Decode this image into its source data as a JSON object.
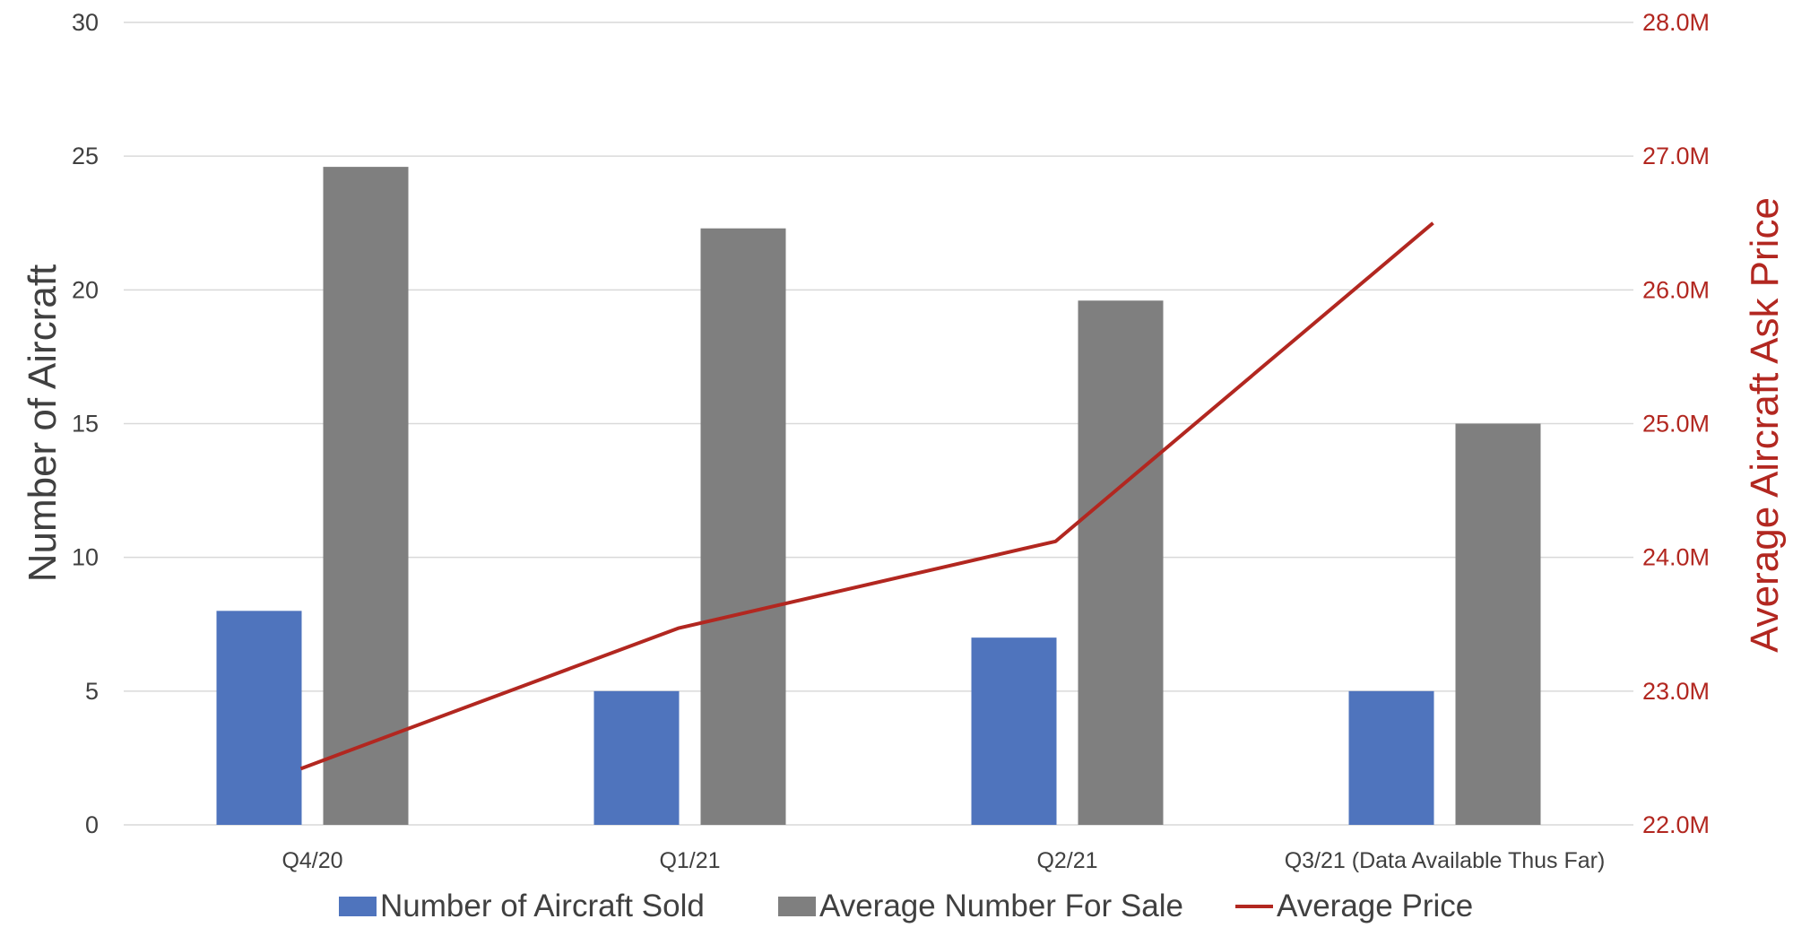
{
  "chart_data": {
    "type": "bar",
    "categories": [
      "Q4/20",
      "Q1/21",
      "Q2/21",
      "Q3/21 (Data Available Thus Far)"
    ],
    "series": [
      {
        "name": "Number of Aircraft Sold",
        "kind": "bar",
        "axis": "left",
        "color": "#4f74bd",
        "values": [
          8,
          5,
          7,
          5
        ]
      },
      {
        "name": "Average Number For Sale",
        "kind": "bar",
        "axis": "left",
        "color": "#7f7f7f",
        "values": [
          24.6,
          22.3,
          19.6,
          15
        ]
      },
      {
        "name": "Average Price",
        "kind": "line",
        "axis": "right",
        "color": "#b22720",
        "values": [
          22.42,
          23.47,
          24.12,
          26.5
        ]
      }
    ],
    "ylabel": "Number of Aircraft",
    "y2label": "Average Aircraft Ask Price",
    "ylim": [
      0,
      30
    ],
    "y2lim": [
      22.0,
      28.0
    ],
    "yticks": [
      "0",
      "5",
      "10",
      "15",
      "20",
      "25",
      "30"
    ],
    "y2ticks": [
      "22.0M",
      "23.0M",
      "24.0M",
      "25.0M",
      "26.0M",
      "27.0M",
      "28.0M"
    ],
    "grid": true,
    "legend_position": "bottom",
    "colors": {
      "axis_text": "#404040",
      "right_axis": "#b22720",
      "grid": "#d9d9d9"
    }
  }
}
